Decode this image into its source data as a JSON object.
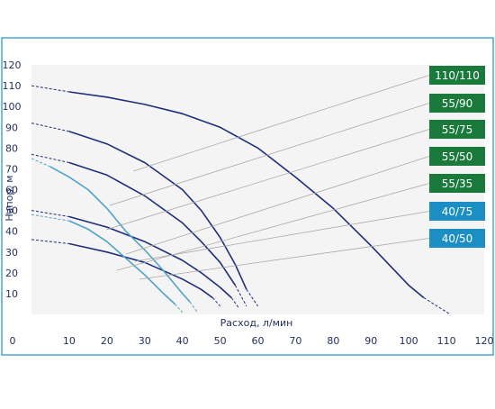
{
  "chart_data": {
    "type": "line",
    "title": "",
    "xlabel": "Расход, л/мин",
    "ylabel": "Напор, м",
    "xlim": [
      0,
      120
    ],
    "ylim": [
      0,
      120
    ],
    "x_ticks": [
      0,
      10,
      20,
      30,
      40,
      50,
      60,
      70,
      80,
      90,
      100,
      110,
      120
    ],
    "y_ticks": [
      10,
      20,
      30,
      40,
      50,
      60,
      70,
      80,
      90,
      100,
      110,
      120
    ],
    "grid": false,
    "legend": "right",
    "series": [
      {
        "name": "110/110",
        "color": "#1f2d7a",
        "label_color": "#1a7a3c",
        "extrap_start": [
          [
            0,
            110
          ],
          [
            10,
            107
          ]
        ],
        "points": [
          [
            10,
            107
          ],
          [
            20,
            104.5
          ],
          [
            30,
            101
          ],
          [
            40,
            96.5
          ],
          [
            50,
            90
          ],
          [
            60,
            80
          ],
          [
            70,
            66
          ],
          [
            80,
            51
          ],
          [
            90,
            33
          ],
          [
            100,
            14
          ],
          [
            104,
            8
          ]
        ],
        "extrap_end": [
          [
            104,
            8
          ],
          [
            111,
            0
          ]
        ]
      },
      {
        "name": "55/90",
        "color": "#1f2d7a",
        "label_color": "#1a7a3c",
        "extrap_start": [
          [
            0,
            92
          ],
          [
            10,
            88
          ]
        ],
        "points": [
          [
            10,
            88
          ],
          [
            20,
            82
          ],
          [
            30,
            73
          ],
          [
            40,
            60
          ],
          [
            45,
            50
          ],
          [
            50,
            37
          ],
          [
            54,
            24
          ],
          [
            57,
            12
          ]
        ],
        "extrap_end": [
          [
            57,
            12
          ],
          [
            60,
            4
          ]
        ]
      },
      {
        "name": "55/75",
        "color": "#1f2d7a",
        "label_color": "#1a7a3c",
        "extrap_start": [
          [
            0,
            77
          ],
          [
            10,
            73
          ]
        ],
        "points": [
          [
            10,
            73
          ],
          [
            20,
            67
          ],
          [
            30,
            57
          ],
          [
            40,
            44
          ],
          [
            45,
            35
          ],
          [
            50,
            25
          ],
          [
            54,
            14
          ]
        ],
        "extrap_end": [
          [
            54,
            14
          ],
          [
            57,
            4
          ]
        ]
      },
      {
        "name": "55/50",
        "color": "#1f2d7a",
        "label_color": "#1a7a3c",
        "extrap_start": [
          [
            0,
            50
          ],
          [
            10,
            47
          ]
        ],
        "points": [
          [
            10,
            47
          ],
          [
            20,
            42
          ],
          [
            30,
            35
          ],
          [
            40,
            26
          ],
          [
            45,
            20
          ],
          [
            50,
            13
          ],
          [
            53,
            8
          ]
        ],
        "extrap_end": [
          [
            53,
            8
          ],
          [
            55,
            3
          ]
        ]
      },
      {
        "name": "55/35",
        "color": "#1f2d7a",
        "label_color": "#1a7a3c",
        "extrap_start": [
          [
            0,
            36
          ],
          [
            10,
            34
          ]
        ],
        "points": [
          [
            10,
            34
          ],
          [
            20,
            30
          ],
          [
            30,
            25
          ],
          [
            40,
            17
          ],
          [
            45,
            12
          ],
          [
            48,
            8
          ]
        ],
        "extrap_end": [
          [
            48,
            8
          ],
          [
            50,
            4
          ]
        ]
      },
      {
        "name": "40/75",
        "color": "#4fa3c8",
        "label_color": "#1b8fc4",
        "extrap_start": [
          [
            0,
            75
          ],
          [
            5,
            71
          ]
        ],
        "points": [
          [
            5,
            71
          ],
          [
            10,
            66
          ],
          [
            15,
            60
          ],
          [
            20,
            51
          ],
          [
            25,
            40
          ],
          [
            30,
            31
          ],
          [
            35,
            21
          ],
          [
            40,
            10
          ],
          [
            42,
            6
          ]
        ],
        "extrap_end": [
          [
            42,
            6
          ],
          [
            44,
            1
          ]
        ]
      },
      {
        "name": "40/50",
        "color": "#4fa3c8",
        "label_color": "#1b8fc4",
        "extrap_start": [
          [
            0,
            48
          ],
          [
            10,
            45
          ]
        ],
        "points": [
          [
            10,
            45
          ],
          [
            15,
            41
          ],
          [
            20,
            35
          ],
          [
            25,
            27
          ],
          [
            30,
            19
          ],
          [
            35,
            10
          ],
          [
            38,
            5
          ]
        ],
        "extrap_end": [
          [
            38,
            5
          ],
          [
            40,
            1
          ]
        ]
      }
    ]
  }
}
